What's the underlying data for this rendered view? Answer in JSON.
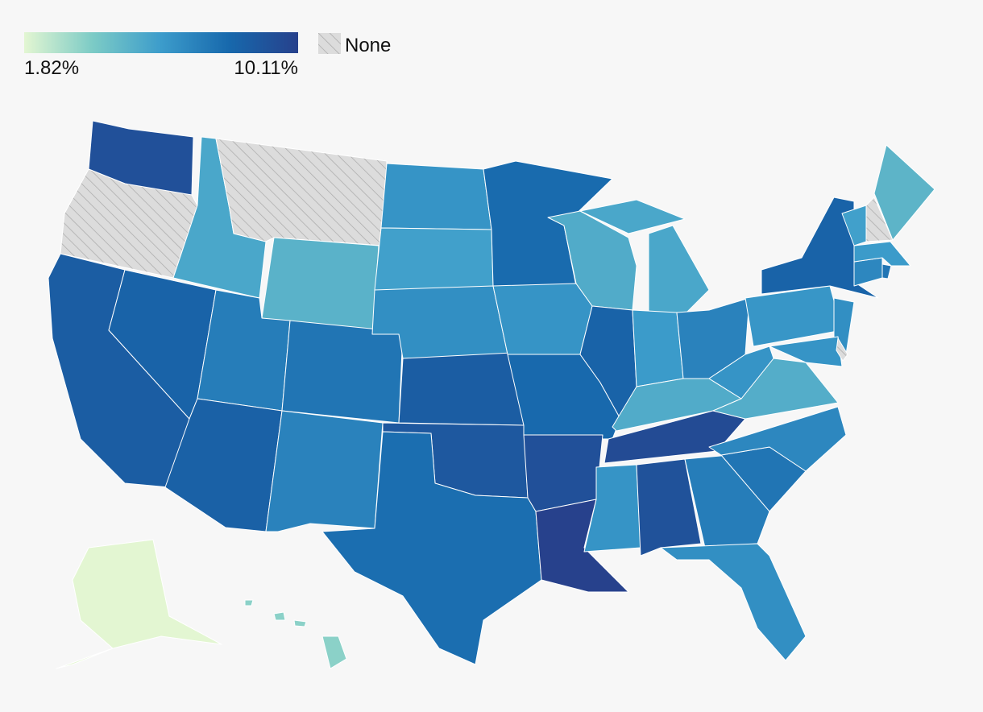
{
  "chart_data": {
    "type": "choropleth",
    "colorbar": {
      "min": {
        "value": 1.82,
        "label": "1.82%"
      },
      "max": {
        "value": 10.11,
        "label": "10.11%"
      }
    },
    "no_data_label": "None",
    "colors": [
      "#e3f6d2",
      "#7ccbc6",
      "#3c9ccb",
      "#1768ac",
      "#27418c"
    ],
    "no_data_color": "#dcdcdc",
    "values": [
      9.3,
      null,
      8.6,
      8.3,
      5.5,
      null,
      5.0,
      7.2,
      8.4,
      7.5,
      7.0,
      6.3,
      5.8,
      6.5,
      8.6,
      8.9,
      7.8,
      7.9,
      6.3,
      8.0,
      9.3,
      10.11,
      5.3,
      8.3,
      5.5,
      5.5,
      6.0,
      7.0,
      5.3,
      9.6,
      6.3,
      9.2,
      7.2,
      6.5,
      7.5,
      6.8,
      5.2,
      6.3,
      6.2,
      8.3,
      6.5,
      6.3,
      null,
      6.8,
      7.5,
      6.0,
      5.8,
      null,
      4.9,
      1.82,
      3.6
    ]
  }
}
